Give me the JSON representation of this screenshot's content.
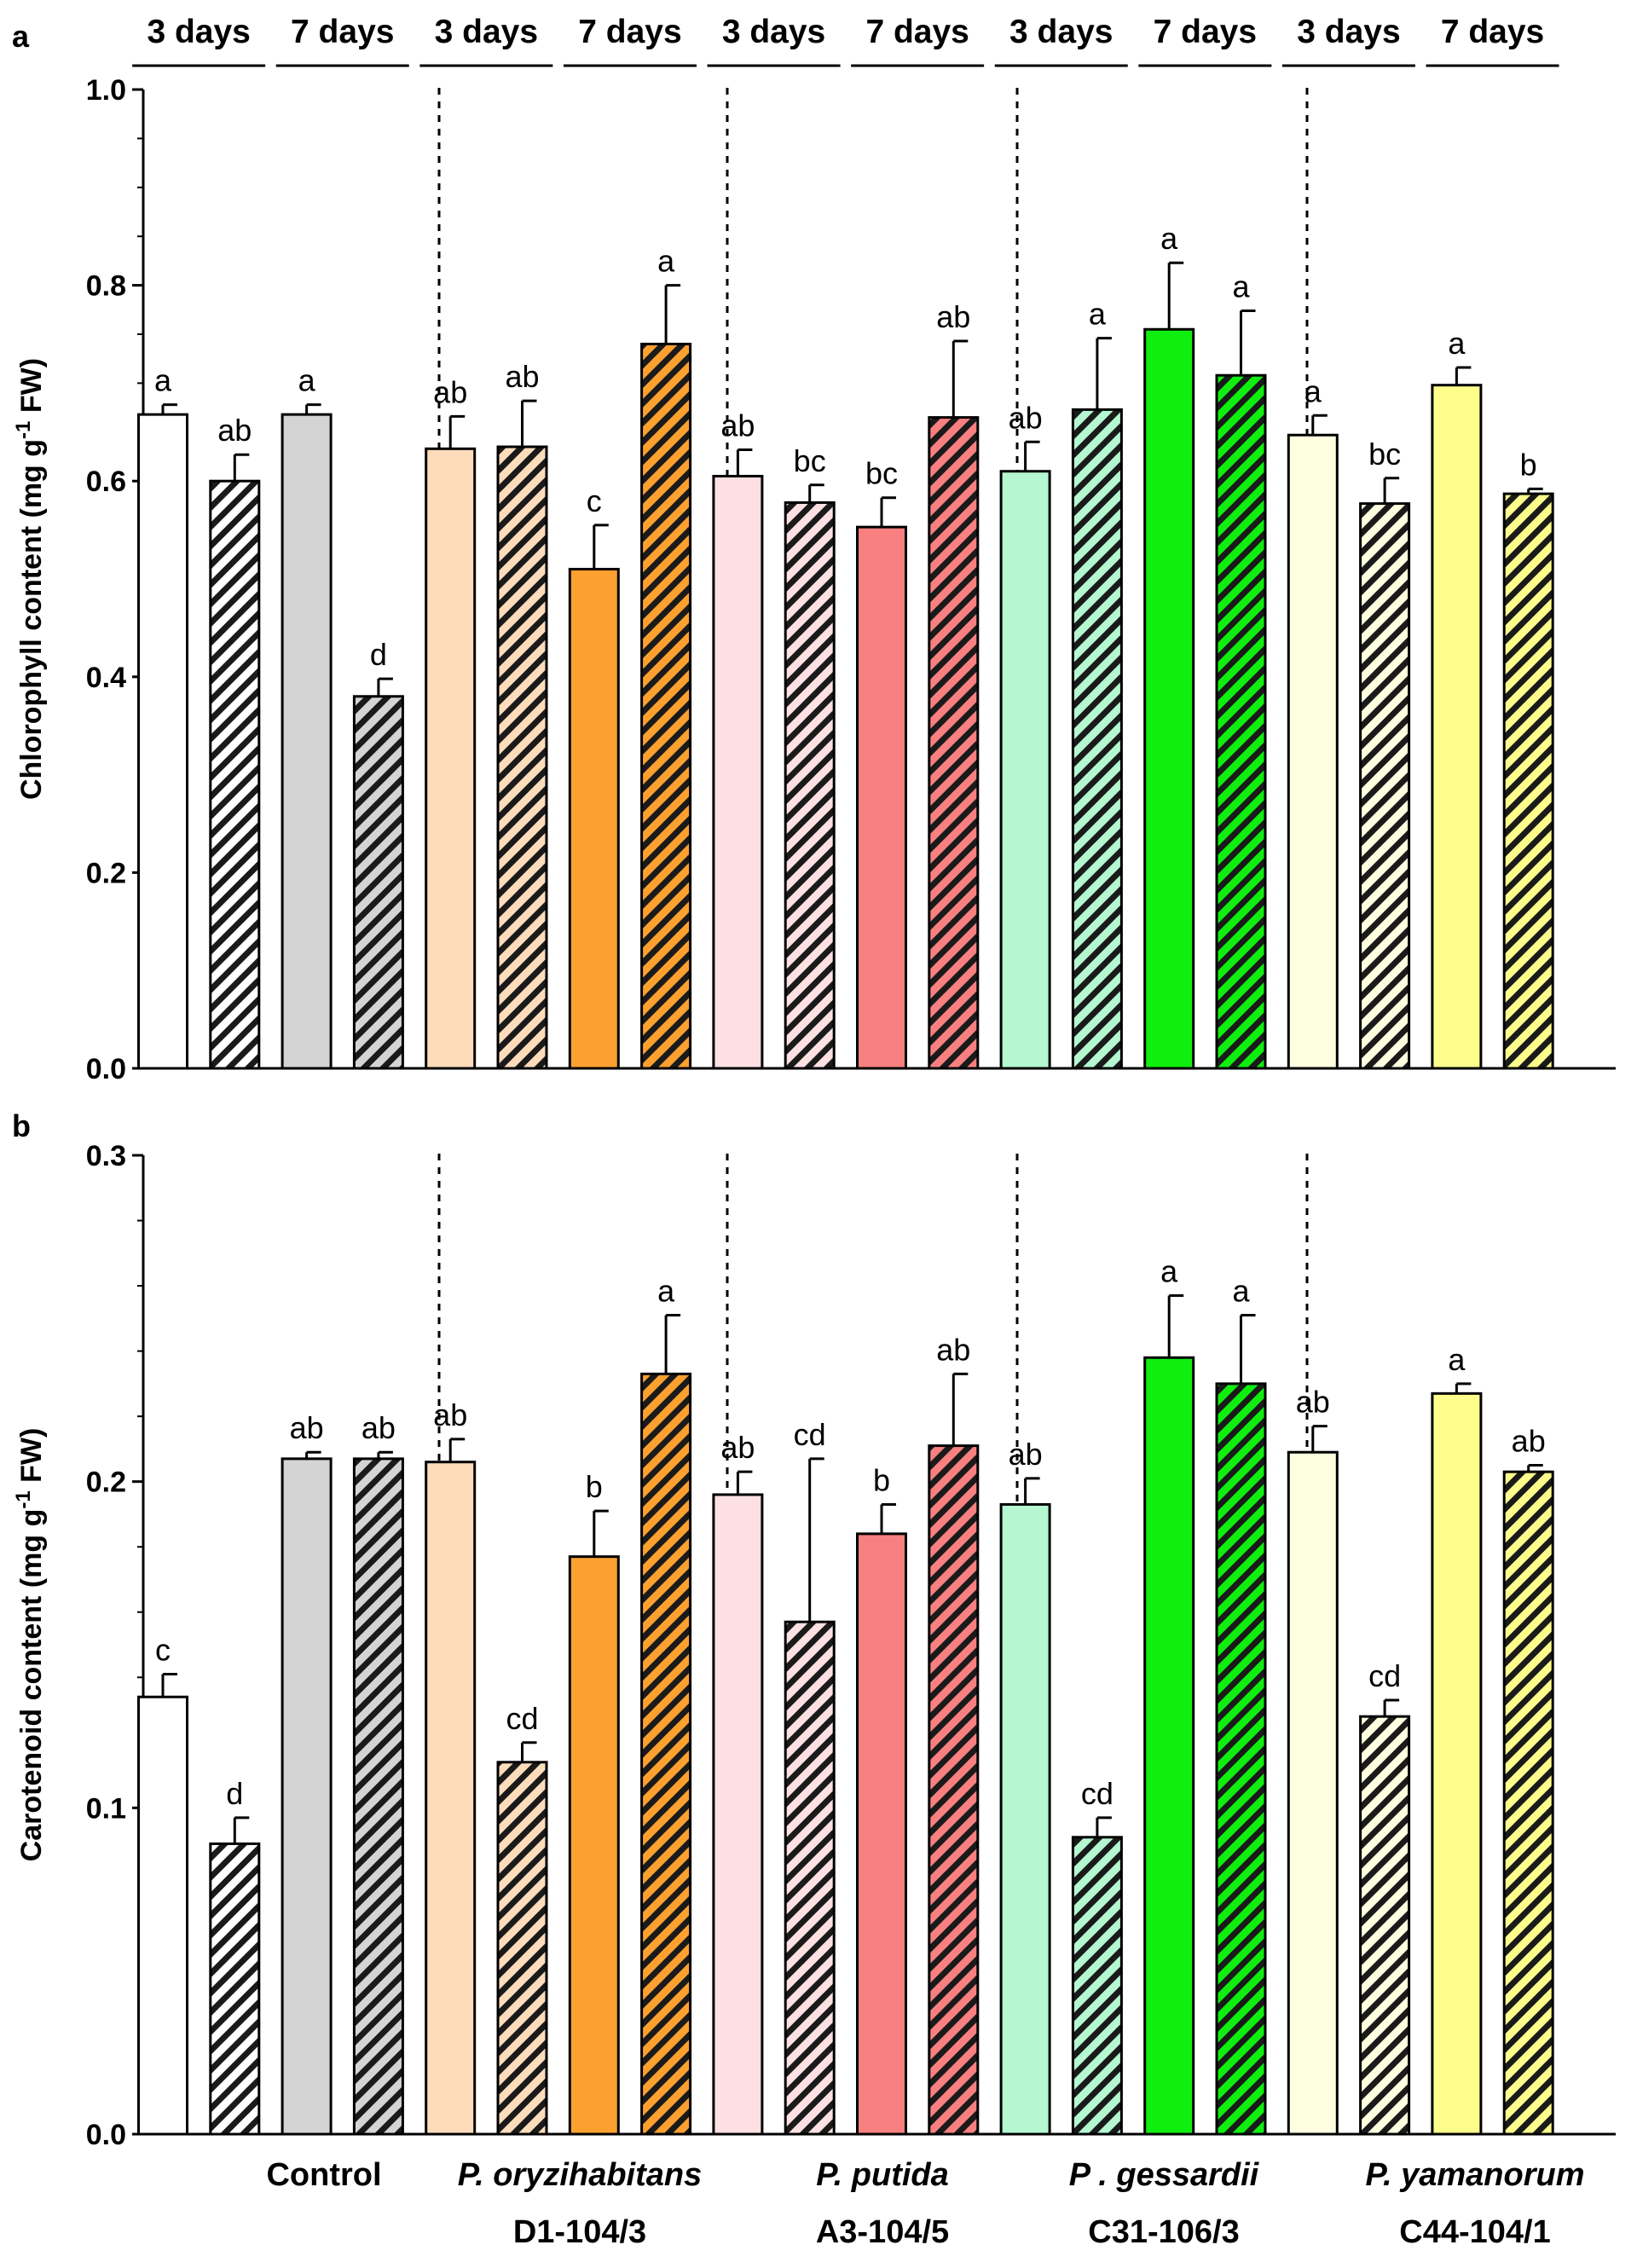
{
  "chart_data": [
    {
      "type": "bar",
      "panel_label": "a",
      "ylabel": "Chlorophyll content (mg g-1 FW)",
      "ylabel_parts": {
        "pre": "Chlorophyll content (mg g",
        "sup": "-1",
        "post": " FW)"
      },
      "ylim": [
        0,
        1.0
      ],
      "yticks": [
        "0.0",
        "0.2",
        "0.4",
        "0.6",
        "0.8",
        "1.0"
      ],
      "period_labels": [
        "3 days",
        "7 days",
        "3 days",
        "7 days",
        "3 days",
        "7 days",
        "3 days",
        "7 days",
        "3 days",
        "7 days"
      ],
      "groups": [
        {
          "name": "Control",
          "strain": ""
        },
        {
          "name": "P. oryzihabitans",
          "strain": "D1-104/3"
        },
        {
          "name": "P. putida",
          "strain": "A3-104/5"
        },
        {
          "name": "P . gessardii",
          "strain": "C31-106/3"
        },
        {
          "name": "P. yamanorum",
          "strain": "C44-104/1"
        }
      ],
      "values": [
        0.668,
        0.6,
        0.668,
        0.38,
        0.633,
        0.635,
        0.51,
        0.74,
        0.605,
        0.578,
        0.553,
        0.665,
        0.61,
        0.673,
        0.755,
        0.708,
        0.647,
        0.577,
        0.698,
        0.587
      ],
      "errors": [
        0.01,
        0.027,
        0.01,
        0.018,
        0.033,
        0.047,
        0.045,
        0.06,
        0.027,
        0.018,
        0.03,
        0.078,
        0.03,
        0.073,
        0.068,
        0.066,
        0.02,
        0.026,
        0.018,
        0.005
      ],
      "significance": [
        "a",
        "ab",
        "a",
        "d",
        "ab",
        "ab",
        "c",
        "a",
        "ab",
        "bc",
        "bc",
        "ab",
        "ab",
        "a",
        "a",
        "a",
        "a",
        "bc",
        "a",
        "b"
      ]
    },
    {
      "type": "bar",
      "panel_label": "b",
      "ylabel": "Carotenoid content (mg g-1 FW)",
      "ylabel_parts": {
        "pre": "Carotenoid content (mg g",
        "sup": "-1",
        "post": " FW)"
      },
      "ylim": [
        0,
        0.3
      ],
      "yticks": [
        "0.0",
        "0.1",
        "0.2",
        "0.3"
      ],
      "values": [
        0.134,
        0.089,
        0.207,
        0.207,
        0.206,
        0.114,
        0.177,
        0.233,
        0.196,
        0.157,
        0.184,
        0.211,
        0.193,
        0.091,
        0.238,
        0.23,
        0.209,
        0.128,
        0.227,
        0.203
      ],
      "errors": [
        0.007,
        0.008,
        0.002,
        0.002,
        0.007,
        0.006,
        0.014,
        0.018,
        0.007,
        0.05,
        0.009,
        0.022,
        0.008,
        0.006,
        0.019,
        0.021,
        0.008,
        0.005,
        0.003,
        0.002
      ],
      "significance": [
        "c",
        "d",
        "ab",
        "ab",
        "ab",
        "cd",
        "b",
        "a",
        "ab",
        "cd",
        "b",
        "ab",
        "ab",
        "cd",
        "a",
        "a",
        "ab",
        "cd",
        "a",
        "ab"
      ]
    }
  ],
  "legend": {
    "stress_pattern": "hatched",
    "colors": {
      "control_3d": "#ffffff",
      "control_7d": "#d4d4d4",
      "oryzihabitans_3d": "#fddcbc",
      "oryzihabitans_7d": "#fca030",
      "putida_3d": "#fde0e2",
      "putida_7d": "#f88080",
      "gessardii_3d": "#b4f7d0",
      "gessardii_7d": "#10ee10",
      "yamanorum_3d": "#fefee0",
      "yamanorum_7d": "#fdfd8c"
    },
    "bar_colors": [
      "#ffffff",
      "#ffffff",
      "#d4d4d4",
      "#d4d4d4",
      "#fddcbc",
      "#fddcbc",
      "#fca030",
      "#fca030",
      "#fde0e2",
      "#fde0e2",
      "#f88080",
      "#f88080",
      "#b4f7d0",
      "#b4f7d0",
      "#10ee10",
      "#10ee10",
      "#fefee0",
      "#fefee0",
      "#fdfd8c",
      "#fdfd8c"
    ],
    "bar_hatched": [
      false,
      true,
      false,
      true,
      false,
      true,
      false,
      true,
      false,
      true,
      false,
      true,
      false,
      true,
      false,
      true,
      false,
      true,
      false,
      true
    ]
  }
}
